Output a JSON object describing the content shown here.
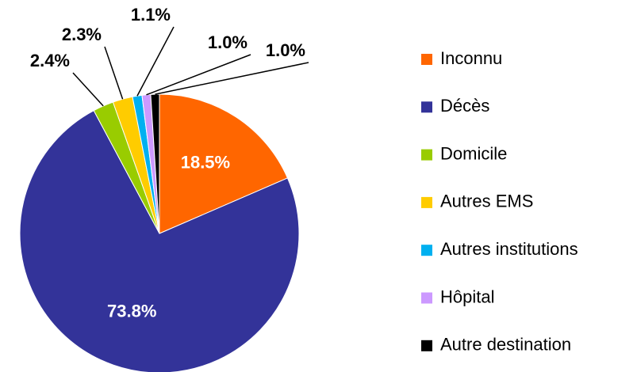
{
  "chart_data": {
    "type": "pie",
    "categories": [
      "Inconnu",
      "Décès",
      "Domicile",
      "Autres EMS",
      "Autres institutions",
      "Hôpital",
      "Autre destination"
    ],
    "values": [
      18.5,
      73.8,
      2.4,
      2.3,
      1.1,
      1.0,
      1.0
    ],
    "value_labels": [
      "18.5%",
      "73.8%",
      "2.4%",
      "2.3%",
      "1.1%",
      "1.0%",
      "1.0%"
    ],
    "colors": [
      "#ff6600",
      "#333399",
      "#99cc00",
      "#ffcc00",
      "#00b0f0",
      "#cc99ff",
      "#000000"
    ],
    "legend": "right"
  }
}
